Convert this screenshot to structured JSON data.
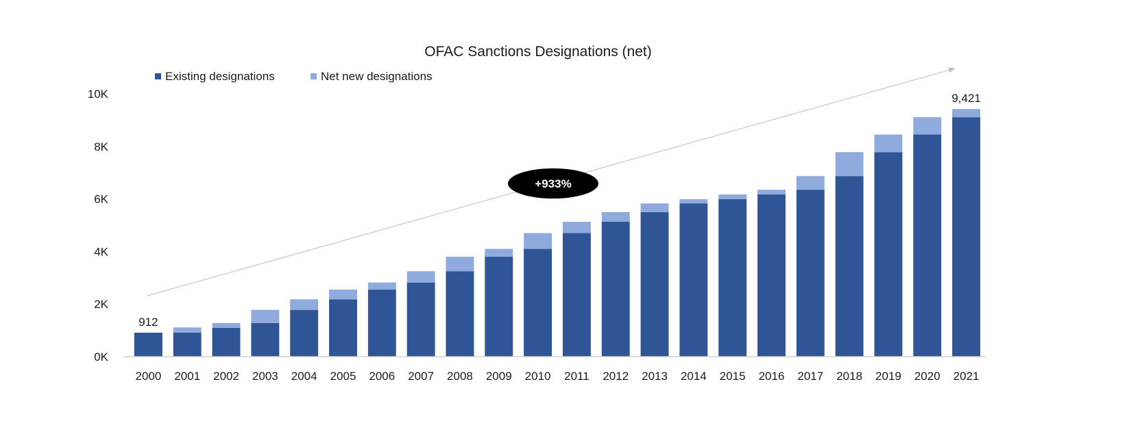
{
  "chart_data": {
    "type": "bar",
    "stacked": true,
    "title": "OFAC Sanctions Designations (net)",
    "xlabel": "",
    "ylabel": "",
    "ylim": [
      0,
      10000
    ],
    "yticks": [
      0,
      2000,
      4000,
      6000,
      8000,
      10000
    ],
    "ytick_labels": [
      "0K",
      "2K",
      "4K",
      "6K",
      "8K",
      "10K"
    ],
    "categories": [
      "2000",
      "2001",
      "2002",
      "2003",
      "2004",
      "2005",
      "2006",
      "2007",
      "2008",
      "2009",
      "2010",
      "2011",
      "2012",
      "2013",
      "2014",
      "2015",
      "2016",
      "2017",
      "2018",
      "2019",
      "2020",
      "2021"
    ],
    "series": [
      {
        "name": "Existing designations",
        "color": "#2f5597",
        "values": [
          912,
          912,
          1100,
          1280,
          1780,
          2180,
          2550,
          2820,
          3250,
          3800,
          4100,
          4700,
          5130,
          5500,
          5830,
          5990,
          6170,
          6350,
          6870,
          7780,
          8450,
          9110
        ]
      },
      {
        "name": "Net new designations",
        "color": "#8faadc",
        "values": [
          0,
          200,
          180,
          500,
          400,
          370,
          270,
          430,
          550,
          300,
          600,
          430,
          370,
          330,
          160,
          180,
          180,
          520,
          910,
          670,
          660,
          311
        ]
      }
    ],
    "legend": {
      "position": "top-left"
    },
    "grid": false,
    "data_labels": [
      {
        "category": "2000",
        "text": "912"
      },
      {
        "category": "2021",
        "text": "9,421"
      }
    ],
    "annotations": [
      {
        "text": "+933%",
        "type": "trend-arrow",
        "from_category": "2000",
        "to_category": "2021"
      }
    ]
  }
}
